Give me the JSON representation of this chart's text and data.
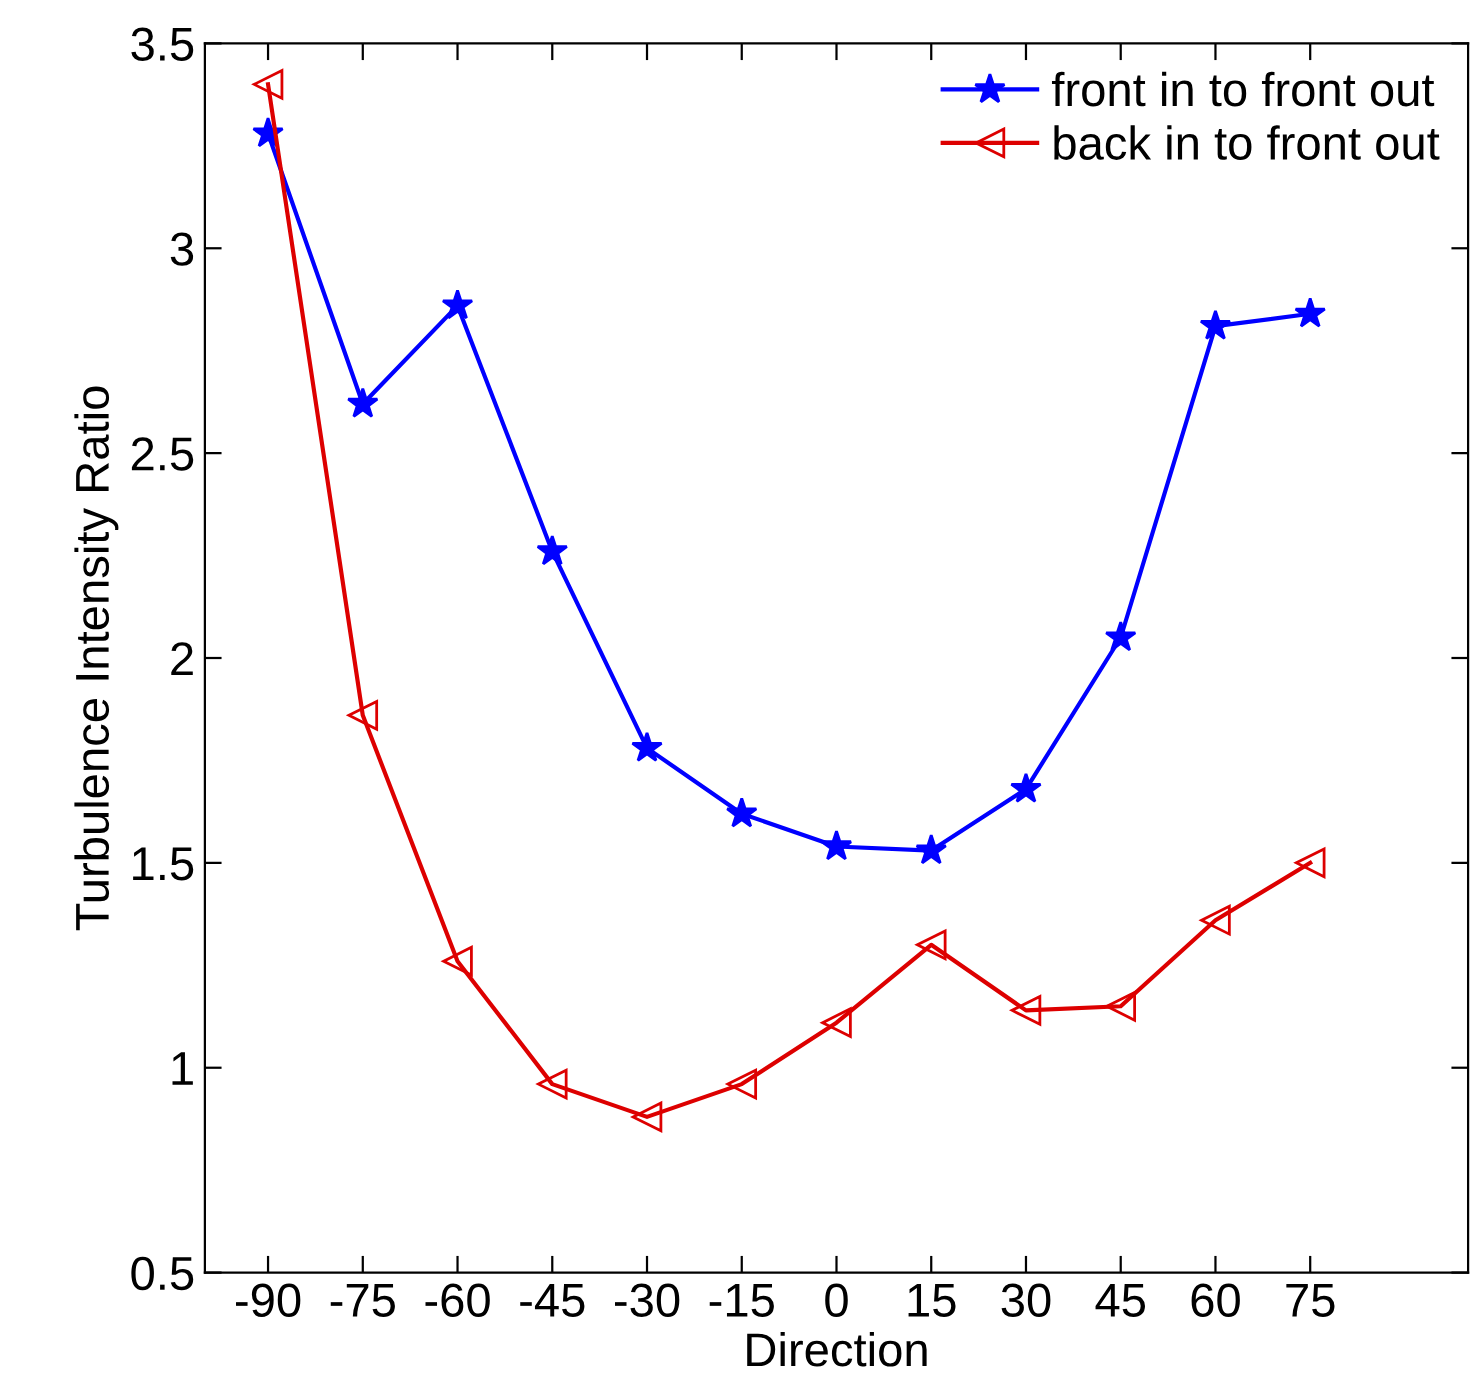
{
  "chart_data": {
    "type": "line",
    "xlabel": "Direction",
    "ylabel": "Turbulence Intensity Ratio",
    "x": [
      -90,
      -75,
      -60,
      -45,
      -30,
      -15,
      0,
      15,
      30,
      45,
      60,
      75
    ],
    "xlim": [
      -100,
      100
    ],
    "xticks": [
      -90,
      -75,
      -60,
      -45,
      -30,
      -15,
      0,
      15,
      30,
      45,
      60,
      75
    ],
    "ylim": [
      0.5,
      3.5
    ],
    "yticks": [
      0.5,
      1,
      1.5,
      2,
      2.5,
      3,
      3.5
    ],
    "grid": false,
    "legend": "top right",
    "line_style": "solid",
    "series": [
      {
        "name": "front in to front out",
        "color": "#0000ff",
        "marker": "star",
        "values": [
          3.28,
          2.62,
          2.86,
          2.26,
          1.78,
          1.62,
          1.54,
          1.53,
          1.68,
          2.05,
          2.81,
          2.84
        ]
      },
      {
        "name": "back in to front out",
        "color": "#dd0000",
        "marker": "triangle",
        "values": [
          3.4,
          1.86,
          1.26,
          0.96,
          0.88,
          0.96,
          1.11,
          1.3,
          1.14,
          1.15,
          1.36,
          1.5
        ]
      }
    ]
  }
}
